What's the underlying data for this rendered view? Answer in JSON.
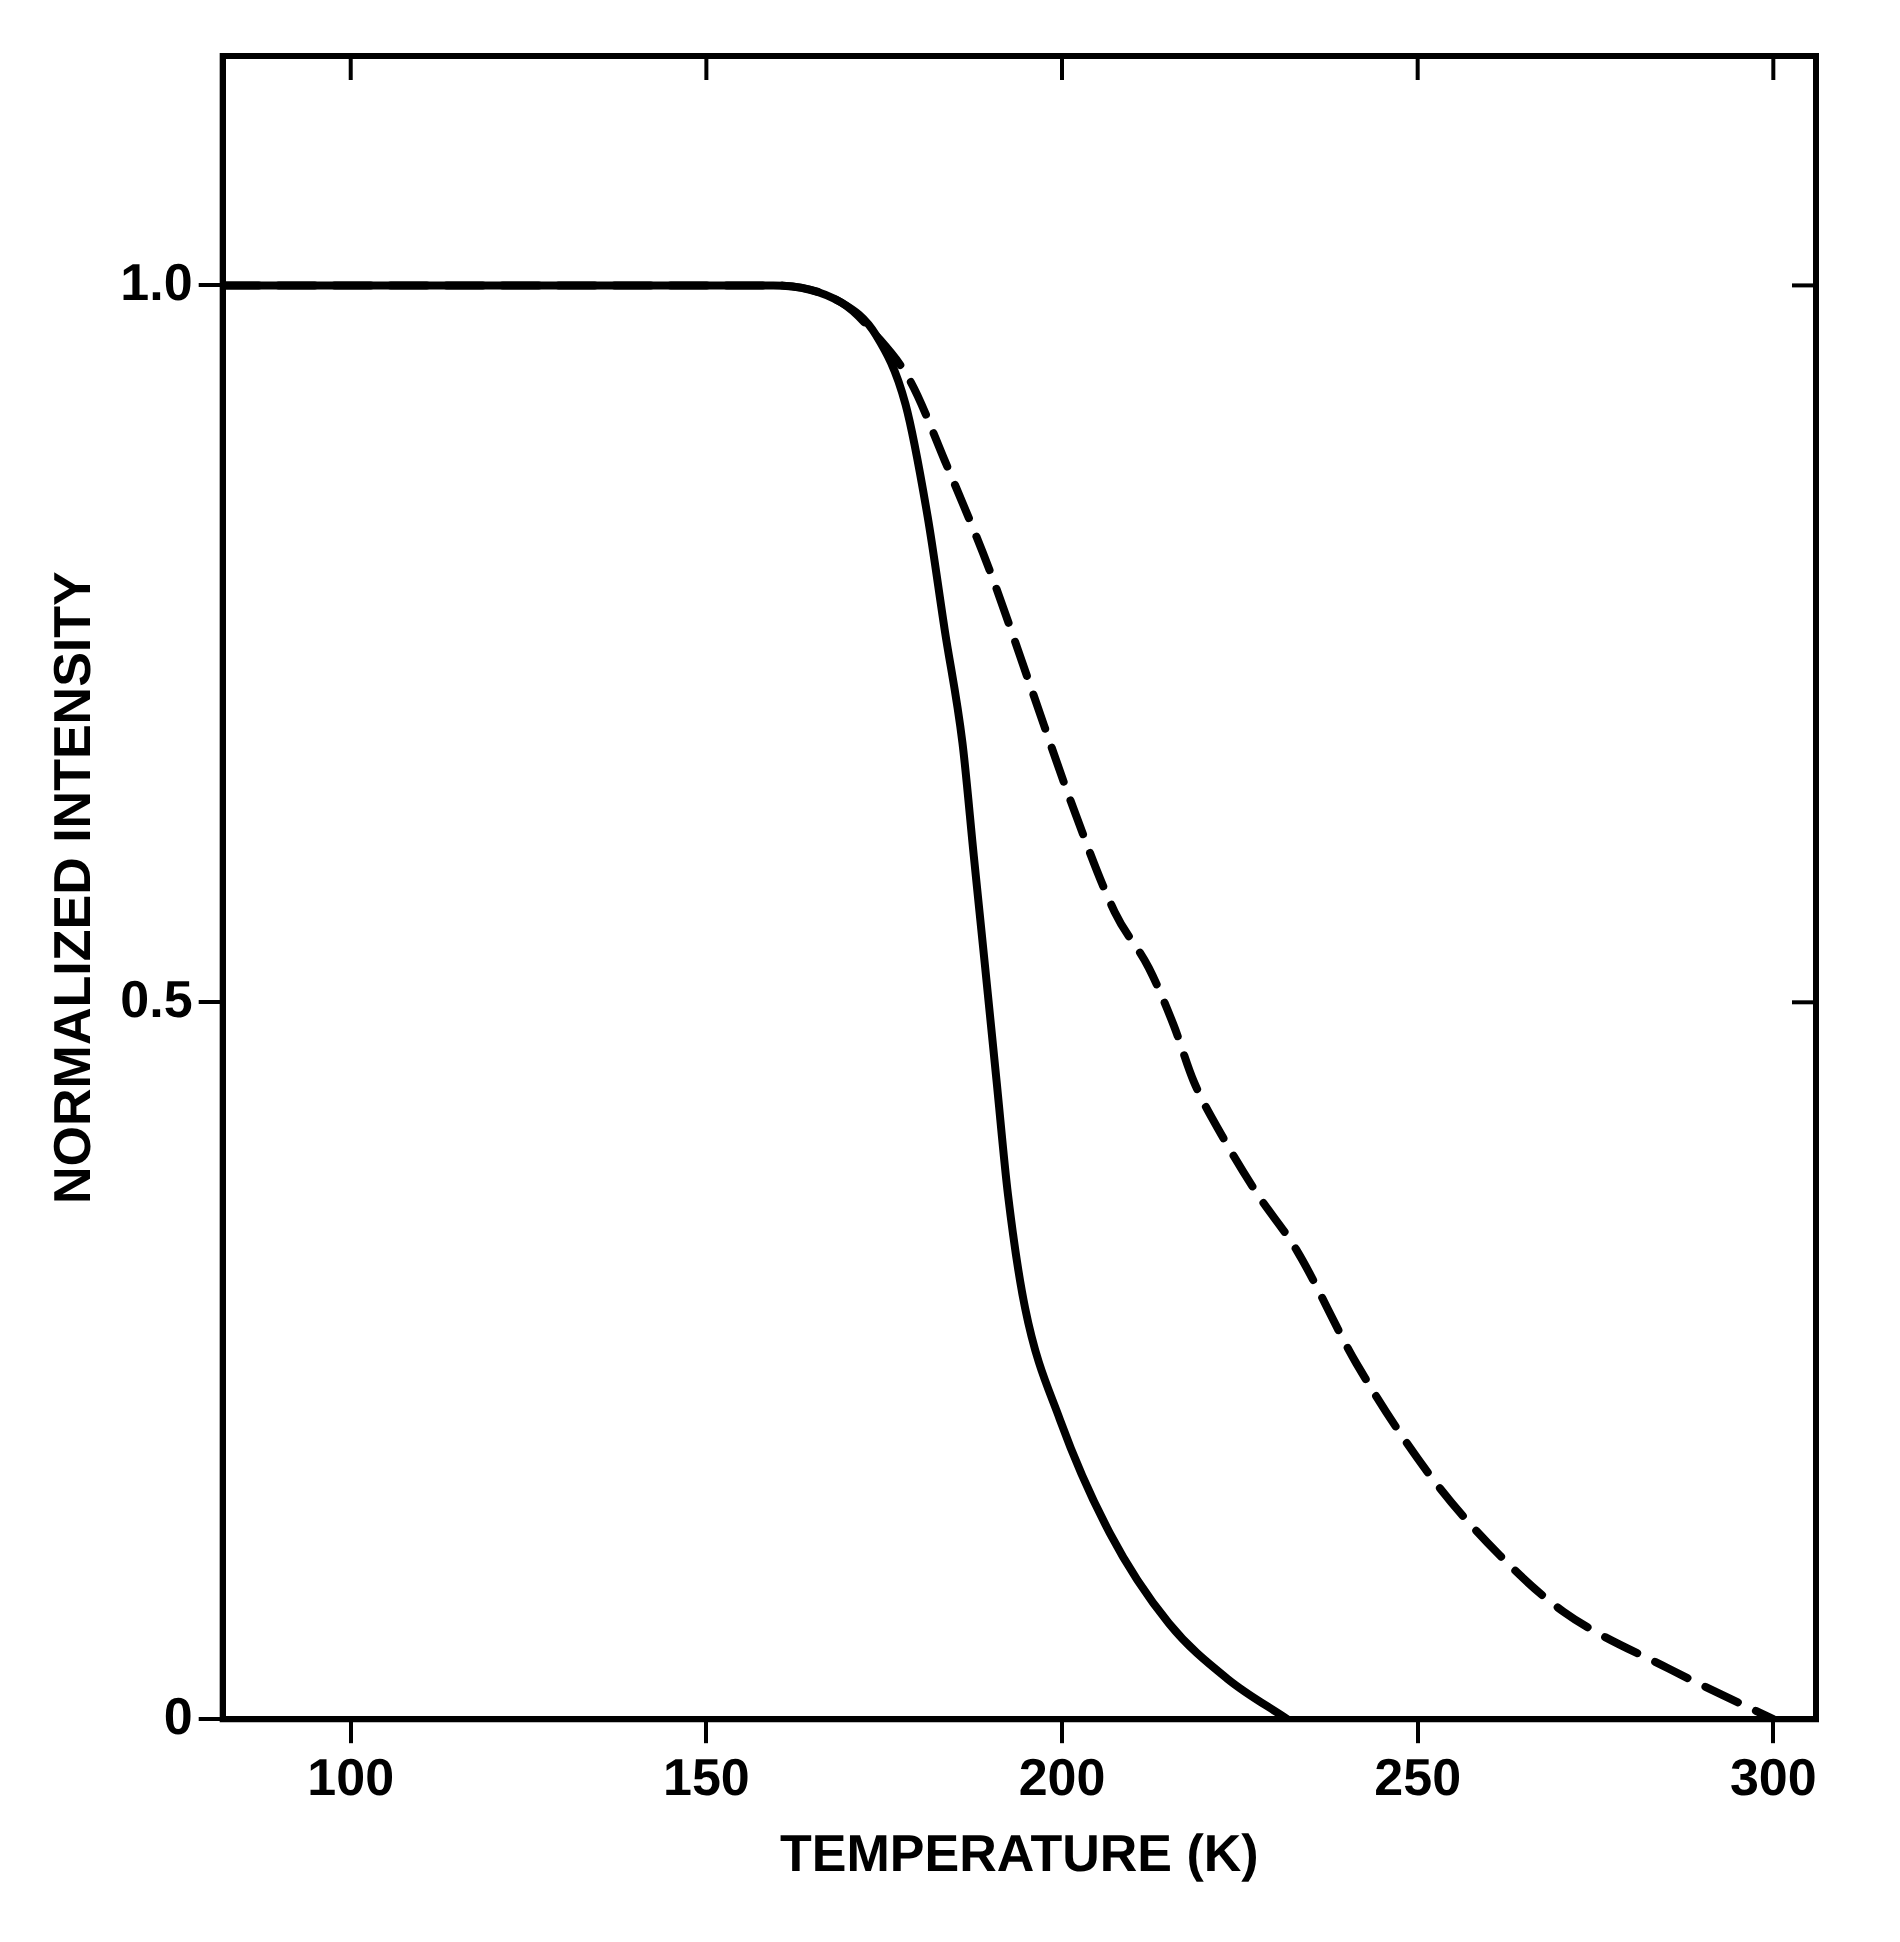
{
  "chart_data": {
    "type": "line",
    "xlabel": "TEMPERATURE (K)",
    "ylabel": "NORMALIZED INTENSITY",
    "xlim": [
      82,
      306
    ],
    "ylim": [
      0,
      1.16
    ],
    "xticks": [
      100,
      150,
      200,
      250,
      300
    ],
    "yticks": [
      0,
      0.5,
      {
        "value": 1,
        "label": "1.0"
      }
    ],
    "grid": false,
    "legend": false,
    "marker": "none",
    "series": [
      {
        "color": "#000000",
        "line_style": "solid",
        "x": [
          82,
          159.4,
          169,
          173.9,
          178,
          181.1,
          183.5,
          186,
          187.6,
          189.2,
          190.8,
          192.4,
          194.8,
          199.7,
          206.7,
          215,
          223.3,
          231.7
        ],
        "values": [
          1,
          1,
          0.988,
          0.965,
          0.917,
          0.839,
          0.76,
          0.681,
          0.602,
          0.524,
          0.445,
          0.366,
          0.287,
          0.209,
          0.13,
          0.067,
          0.028,
          0
        ]
      },
      {
        "color": "#000000",
        "line_style": "dashed",
        "x": [
          82,
          159.4,
          169,
          173.9,
          178.7,
          183.5,
          190,
          195.6,
          201.1,
          207.4,
          212.2,
          215.7,
          218.5,
          222.6,
          227.5,
          233,
          241.4,
          251.9,
          261.6,
          270.5,
          285.4,
          300
        ],
        "values": [
          1,
          1,
          0.988,
          0.965,
          0.933,
          0.878,
          0.799,
          0.72,
          0.642,
          0.563,
          0.524,
          0.484,
          0.445,
          0.406,
          0.366,
          0.327,
          0.248,
          0.169,
          0.114,
          0.075,
          0.035,
          0
        ]
      }
    ]
  }
}
